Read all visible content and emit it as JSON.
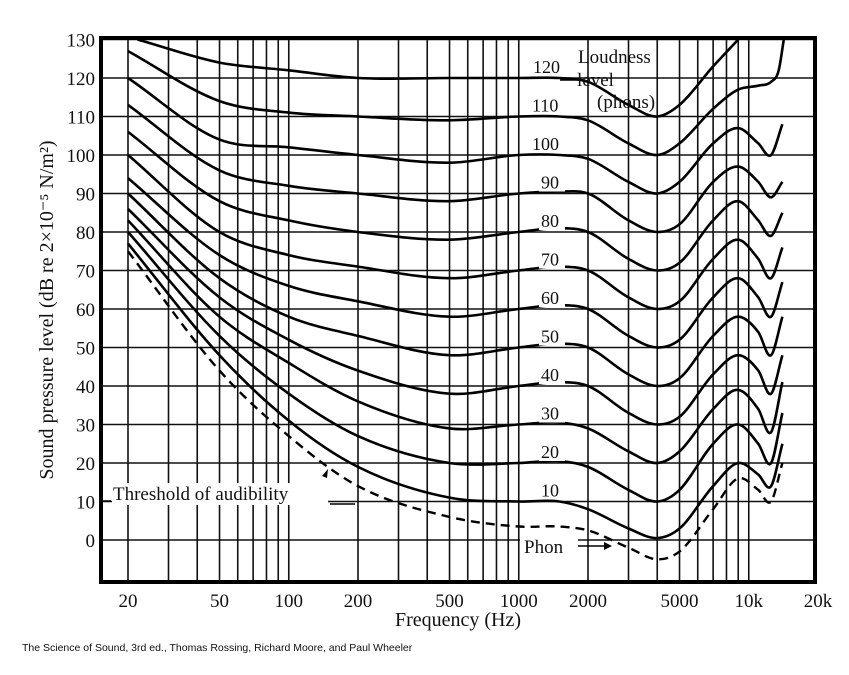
{
  "chart_data": {
    "type": "line",
    "title": "",
    "xlabel": "Frequency (Hz)",
    "ylabel": "Sound pressure level (dB re 2×10⁻⁵ N/m²)",
    "xscale": "log",
    "xlim": [
      15,
      21000
    ],
    "ylim": [
      -11,
      130
    ],
    "grid": true,
    "x_tick_labels": [
      {
        "value": 20,
        "label": "20"
      },
      {
        "value": 50,
        "label": "50"
      },
      {
        "value": 100,
        "label": "100"
      },
      {
        "value": 200,
        "label": "200"
      },
      {
        "value": 500,
        "label": "500"
      },
      {
        "value": 1000,
        "label": "1000"
      },
      {
        "value": 2000,
        "label": "2000"
      },
      {
        "value": 5000,
        "label": "5000"
      },
      {
        "value": 10000,
        "label": "10k"
      },
      {
        "value": 20000,
        "label": "20k"
      }
    ],
    "y_ticks": [
      0,
      10,
      20,
      30,
      40,
      50,
      60,
      70,
      80,
      90,
      100,
      110,
      120,
      130
    ],
    "x_gridlines": [
      20,
      30,
      40,
      50,
      60,
      70,
      80,
      90,
      100,
      200,
      300,
      400,
      500,
      600,
      700,
      800,
      900,
      1000,
      2000,
      3000,
      4000,
      5000,
      6000,
      7000,
      8000,
      9000,
      10000
    ],
    "legend_title": [
      "Loudness",
      "level",
      "(phons)"
    ],
    "series": [
      {
        "name": "120",
        "style": "solid",
        "x": [
          22,
          50,
          100,
          200,
          500,
          1000,
          1500,
          2000,
          3000,
          4000,
          5000,
          7000,
          9000
        ],
        "y": [
          130,
          124,
          122,
          120,
          120,
          120,
          120,
          119,
          113,
          110,
          113,
          123,
          130
        ]
      },
      {
        "name": "110",
        "style": "solid",
        "x": [
          20,
          50,
          100,
          200,
          500,
          1000,
          1500,
          2000,
          3000,
          4000,
          5000,
          7000,
          9000,
          11000,
          12500,
          13500,
          14200
        ],
        "y": [
          127,
          114,
          111,
          110,
          109,
          110,
          110,
          109,
          103,
          100,
          103,
          112,
          117,
          118,
          119,
          122,
          130
        ]
      },
      {
        "name": "100",
        "style": "solid",
        "x": [
          20,
          50,
          100,
          200,
          500,
          1000,
          1500,
          2000,
          3000,
          4000,
          5000,
          7000,
          9000,
          11000,
          12500,
          14000
        ],
        "y": [
          120,
          104,
          102,
          100,
          98,
          100,
          100,
          99,
          93,
          90,
          93,
          103,
          107,
          103,
          100,
          108
        ]
      },
      {
        "name": "90",
        "style": "solid",
        "x": [
          20,
          50,
          100,
          200,
          500,
          1000,
          1500,
          2000,
          3000,
          4000,
          5000,
          7000,
          9000,
          11000,
          12500,
          14000
        ],
        "y": [
          113,
          96,
          92,
          90,
          88,
          90,
          90.5,
          90,
          83,
          80,
          82,
          93,
          97,
          93,
          89,
          93
        ]
      },
      {
        "name": "80",
        "style": "solid",
        "x": [
          20,
          50,
          100,
          200,
          500,
          1000,
          1500,
          2000,
          3000,
          4000,
          5000,
          7000,
          9000,
          11000,
          12500,
          14000
        ],
        "y": [
          106,
          88,
          83,
          80,
          78,
          80,
          81,
          80,
          73,
          70,
          72,
          83,
          88,
          83,
          79,
          85
        ]
      },
      {
        "name": "70",
        "style": "solid",
        "x": [
          20,
          50,
          100,
          200,
          500,
          1000,
          1500,
          2000,
          3000,
          4000,
          5000,
          7000,
          9000,
          11000,
          12500,
          14000
        ],
        "y": [
          100,
          80,
          74,
          71,
          68,
          70,
          71,
          70,
          63,
          60,
          62,
          73,
          78,
          73,
          68,
          76
        ]
      },
      {
        "name": "60",
        "style": "solid",
        "x": [
          20,
          50,
          100,
          200,
          500,
          1000,
          1500,
          2000,
          3000,
          4000,
          5000,
          7000,
          9000,
          11000,
          12500,
          14000
        ],
        "y": [
          94,
          74,
          66,
          62,
          58,
          60,
          61,
          60,
          53,
          50,
          52,
          63,
          68,
          63,
          58,
          67
        ]
      },
      {
        "name": "50",
        "style": "solid",
        "x": [
          20,
          50,
          100,
          200,
          500,
          1000,
          1500,
          2000,
          3000,
          4000,
          5000,
          7000,
          9000,
          11000,
          12500,
          14000
        ],
        "y": [
          90,
          68,
          58,
          53,
          48,
          50,
          51,
          50,
          43,
          40,
          42,
          53,
          58,
          54,
          48,
          58
        ]
      },
      {
        "name": "40",
        "style": "solid",
        "x": [
          20,
          50,
          100,
          200,
          500,
          1000,
          1500,
          2000,
          3000,
          4000,
          5000,
          7000,
          9000,
          11000,
          12500,
          14000
        ],
        "y": [
          86,
          63,
          52,
          44,
          38,
          40,
          41,
          40,
          33,
          30,
          32,
          43,
          48,
          44,
          38,
          48
        ]
      },
      {
        "name": "30",
        "style": "solid",
        "x": [
          20,
          50,
          100,
          200,
          500,
          1000,
          1500,
          2000,
          3000,
          4000,
          5000,
          7000,
          9000,
          11000,
          12500,
          14000
        ],
        "y": [
          83,
          58,
          46,
          36,
          29,
          30,
          30.5,
          29,
          23,
          20,
          23,
          34,
          39,
          34,
          28,
          41
        ]
      },
      {
        "name": "20",
        "style": "solid",
        "x": [
          20,
          50,
          100,
          200,
          500,
          1000,
          1500,
          2000,
          3000,
          4000,
          5000,
          7000,
          9000,
          11000,
          12500,
          14000
        ],
        "y": [
          80,
          53,
          38,
          27,
          20,
          20,
          20.5,
          19,
          13,
          10,
          13,
          25,
          30,
          25,
          20,
          33
        ]
      },
      {
        "name": "10",
        "style": "solid",
        "x": [
          20,
          50,
          100,
          200,
          500,
          1000,
          1500,
          2000,
          3000,
          4000,
          5000,
          7000,
          9000,
          11000,
          12500,
          14000
        ],
        "y": [
          77,
          48,
          31,
          19,
          11,
          10,
          10,
          8,
          3,
          0.5,
          3,
          14,
          20,
          17,
          14,
          25
        ]
      },
      {
        "name": "Threshold of audibility",
        "style": "dashed",
        "x": [
          20,
          50,
          100,
          200,
          500,
          1000,
          1500,
          2000,
          3000,
          4000,
          5000,
          7000,
          9000,
          11000,
          12500,
          14000
        ],
        "y": [
          75,
          44,
          27,
          14,
          6,
          3.5,
          3.5,
          2.5,
          -2,
          -5,
          -3,
          8,
          16,
          13,
          10,
          20
        ]
      }
    ],
    "curve_labels": [
      "120",
      "110",
      "100",
      "90",
      "80",
      "70",
      "60",
      "50",
      "40",
      "30",
      "20",
      "10"
    ],
    "annotations": {
      "threshold": "Threshold of audibility",
      "phon": "Phon"
    }
  },
  "caption": "The Science of Sound, 3rd ed., Thomas Rossing, Richard Moore, and Paul Wheeler"
}
